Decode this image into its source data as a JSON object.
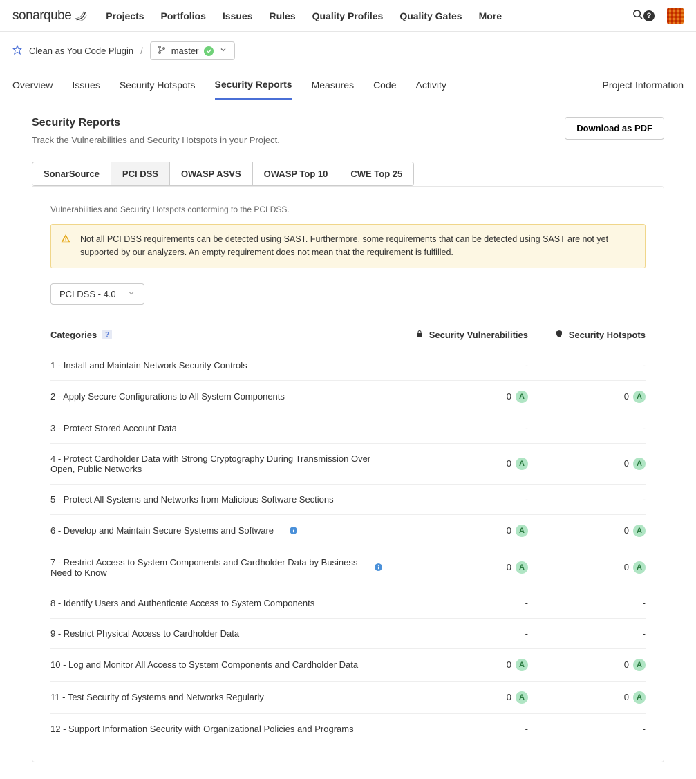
{
  "brand": {
    "name": "sonarqube"
  },
  "topNav": {
    "items": [
      "Projects",
      "Portfolios",
      "Issues",
      "Rules",
      "Quality Profiles",
      "Quality Gates",
      "More"
    ]
  },
  "project": {
    "name": "Clean as You Code Plugin",
    "branch": "master"
  },
  "projectTabs": {
    "items": [
      "Overview",
      "Issues",
      "Security Hotspots",
      "Security Reports",
      "Measures",
      "Code",
      "Activity"
    ],
    "active": "Security Reports",
    "infoLink": "Project Information"
  },
  "page": {
    "title": "Security Reports",
    "subtitle": "Track the Vulnerabilities and Security Hotspots in your Project.",
    "downloadLabel": "Download as PDF"
  },
  "reportTabs": {
    "items": [
      "SonarSource",
      "PCI DSS",
      "OWASP ASVS",
      "OWASP Top 10",
      "CWE Top 25"
    ],
    "active": "PCI DSS"
  },
  "panel": {
    "description": "Vulnerabilities and Security Hotspots conforming to the PCI DSS.",
    "warning": "Not all PCI DSS requirements can be detected using SAST. Furthermore, some requirements that can be detected using SAST are not yet supported by our analyzers. An empty requirement does not mean that the requirement is fulfilled.",
    "versionSelected": "PCI DSS - 4.0"
  },
  "table": {
    "headers": {
      "categories": "Categories",
      "vulnerabilities": "Security Vulnerabilities",
      "hotspots": "Security Hotspots"
    },
    "rows": [
      {
        "label": "1 - Install and Maintain Network Security Controls",
        "vuln": null,
        "vulnRating": null,
        "hot": null,
        "hotRating": null,
        "info": false
      },
      {
        "label": "2 - Apply Secure Configurations to All System Components",
        "vuln": "0",
        "vulnRating": "A",
        "hot": "0",
        "hotRating": "A",
        "info": false
      },
      {
        "label": "3 - Protect Stored Account Data",
        "vuln": null,
        "vulnRating": null,
        "hot": null,
        "hotRating": null,
        "info": false
      },
      {
        "label": "4 - Protect Cardholder Data with Strong Cryptography During Transmission Over Open, Public Networks",
        "vuln": "0",
        "vulnRating": "A",
        "hot": "0",
        "hotRating": "A",
        "info": false
      },
      {
        "label": "5 - Protect All Systems and Networks from Malicious Software Sections",
        "vuln": null,
        "vulnRating": null,
        "hot": null,
        "hotRating": null,
        "info": false
      },
      {
        "label": "6 - Develop and Maintain Secure Systems and Software",
        "vuln": "0",
        "vulnRating": "A",
        "hot": "0",
        "hotRating": "A",
        "info": true
      },
      {
        "label": "7 - Restrict Access to System Components and Cardholder Data by Business Need to Know",
        "vuln": "0",
        "vulnRating": "A",
        "hot": "0",
        "hotRating": "A",
        "info": true
      },
      {
        "label": "8 - Identify Users and Authenticate Access to System Components",
        "vuln": null,
        "vulnRating": null,
        "hot": null,
        "hotRating": null,
        "info": false
      },
      {
        "label": "9 - Restrict Physical Access to Cardholder Data",
        "vuln": null,
        "vulnRating": null,
        "hot": null,
        "hotRating": null,
        "info": false
      },
      {
        "label": "10 - Log and Monitor All Access to System Components and Cardholder Data",
        "vuln": "0",
        "vulnRating": "A",
        "hot": "0",
        "hotRating": "A",
        "info": false
      },
      {
        "label": "11 - Test Security of Systems and Networks Regularly",
        "vuln": "0",
        "vulnRating": "A",
        "hot": "0",
        "hotRating": "A",
        "info": false
      },
      {
        "label": "12 - Support Information Security with Organizational Policies and Programs",
        "vuln": null,
        "vulnRating": null,
        "hot": null,
        "hotRating": null,
        "info": false
      }
    ]
  },
  "colors": {
    "accent": "#4a6fd6",
    "ratingBg": "#b0e5c4",
    "ratingText": "#2a7a3f",
    "warningBg": "#fdf7e3",
    "warningBorder": "#f0d68a"
  }
}
